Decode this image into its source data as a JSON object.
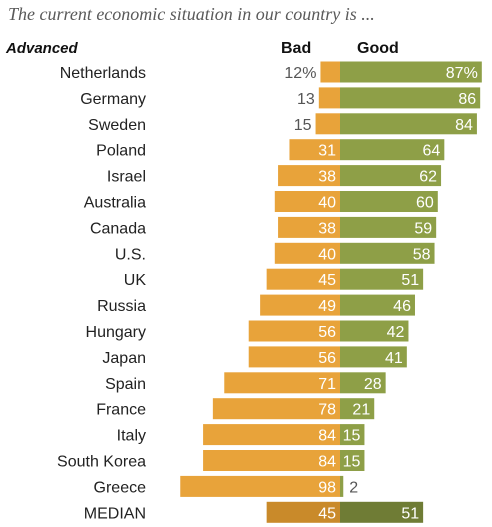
{
  "title": "The current economic situation in our country is ...",
  "chart_data": {
    "type": "bar",
    "orientation": "horizontal-diverging",
    "group_label": "Advanced",
    "categories": [
      "Netherlands",
      "Germany",
      "Sweden",
      "Poland",
      "Israel",
      "Australia",
      "Canada",
      "U.S.",
      "UK",
      "Russia",
      "Hungary",
      "Japan",
      "Spain",
      "France",
      "Italy",
      "South Korea",
      "Greece",
      "MEDIAN"
    ],
    "series": [
      {
        "name": "Bad",
        "color": "#e8a33a",
        "median_color": "#c98a2a",
        "values": [
          12,
          13,
          15,
          31,
          38,
          40,
          38,
          40,
          45,
          49,
          56,
          56,
          71,
          78,
          84,
          84,
          98,
          45
        ]
      },
      {
        "name": "Good",
        "color": "#8e9f47",
        "median_color": "#6f7c35",
        "values": [
          87,
          86,
          84,
          64,
          62,
          60,
          59,
          58,
          51,
          46,
          42,
          41,
          28,
          21,
          15,
          15,
          2,
          51
        ]
      }
    ],
    "value_labels": {
      "bad": [
        "12%",
        "13",
        "15",
        "31",
        "38",
        "40",
        "38",
        "40",
        "45",
        "49",
        "56",
        "56",
        "71",
        "78",
        "84",
        "84",
        "98",
        "45"
      ],
      "good": [
        "87%",
        "86",
        "84",
        "64",
        "62",
        "60",
        "59",
        "58",
        "51",
        "46",
        "42",
        "41",
        "28",
        "21",
        "15",
        "15",
        "2",
        "51"
      ]
    },
    "legend": [
      "Bad",
      "Good"
    ]
  }
}
